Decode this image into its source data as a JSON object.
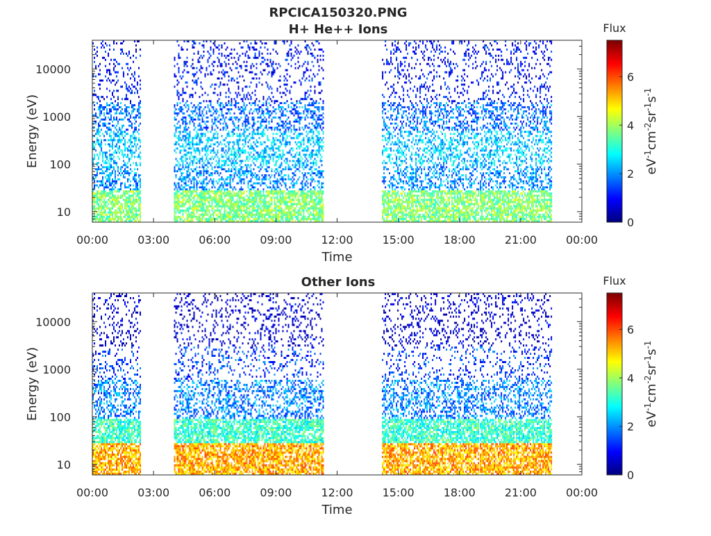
{
  "figure": {
    "title_line1": "RPCICA150320.PNG"
  },
  "colors": {
    "colormap": "jet",
    "axis_color": "#262626",
    "background": "#ffffff"
  },
  "chart_data": [
    {
      "type": "heatmap",
      "title": "H+ He++ Ions",
      "xlabel": "Time",
      "ylabel": "Energy (eV)",
      "y_scale": "log",
      "ylim": [
        6,
        40000
      ],
      "xlim_hours": [
        0,
        24
      ],
      "x_tick_labels": [
        "00:00",
        "03:00",
        "06:00",
        "09:00",
        "12:00",
        "15:00",
        "18:00",
        "21:00",
        "00:00"
      ],
      "y_tick_values": [
        10,
        100,
        1000,
        10000
      ],
      "y_tick_labels": [
        "10",
        "100",
        "1000",
        "10000"
      ],
      "colorbar": {
        "title": "Flux",
        "unit_label": "eV-1cm-2sr-1s-1",
        "range": [
          0,
          7.5
        ],
        "tick_labels": [
          "0",
          "2",
          "4",
          "6"
        ]
      },
      "data_intervals_hours": [
        [
          0.0,
          2.35
        ],
        [
          4.0,
          11.3
        ],
        [
          14.2,
          18.9
        ],
        [
          19.0,
          22.5
        ]
      ],
      "bands": [
        {
          "emin": 6,
          "emax": 28,
          "flux": 3.8
        },
        {
          "emin": 28,
          "emax": 90,
          "flux": 2.0
        },
        {
          "emin": 90,
          "emax": 500,
          "flux": 2.4
        },
        {
          "emin": 500,
          "emax": 2000,
          "flux": 1.8
        },
        {
          "emin": 2000,
          "emax": 40000,
          "flux": 0.9
        }
      ]
    },
    {
      "type": "heatmap",
      "title": "Other Ions",
      "xlabel": "Time",
      "ylabel": "Energy (eV)",
      "y_scale": "log",
      "ylim": [
        6,
        40000
      ],
      "xlim_hours": [
        0,
        24
      ],
      "x_tick_labels": [
        "00:00",
        "03:00",
        "06:00",
        "09:00",
        "12:00",
        "15:00",
        "18:00",
        "21:00",
        "00:00"
      ],
      "y_tick_values": [
        10,
        100,
        1000,
        10000
      ],
      "y_tick_labels": [
        "10",
        "100",
        "1000",
        "10000"
      ],
      "colorbar": {
        "title": "Flux",
        "unit_label": "eV-1cm-2sr-1s-1",
        "range": [
          0,
          7.5
        ],
        "tick_labels": [
          "0",
          "2",
          "4",
          "6"
        ]
      },
      "data_intervals_hours": [
        [
          0.0,
          2.35
        ],
        [
          4.0,
          11.3
        ],
        [
          14.2,
          18.9
        ],
        [
          19.0,
          22.5
        ]
      ],
      "bands": [
        {
          "emin": 6,
          "emax": 28,
          "flux": 5.3
        },
        {
          "emin": 28,
          "emax": 90,
          "flux": 3.2
        },
        {
          "emin": 90,
          "emax": 600,
          "flux": 1.9
        },
        {
          "emin": 600,
          "emax": 3000,
          "flux": 1.3
        },
        {
          "emin": 3000,
          "emax": 40000,
          "flux": 0.5
        }
      ]
    }
  ]
}
